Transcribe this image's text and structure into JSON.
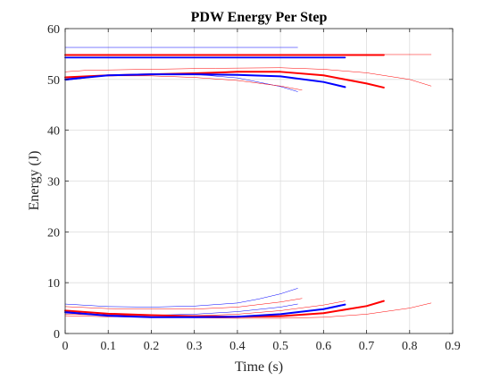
{
  "chart_data": {
    "type": "line",
    "title": "PDW Energy Per Step",
    "xlabel": "Time (s)",
    "ylabel": "Energy (J)",
    "xlim": [
      0,
      0.9
    ],
    "ylim": [
      0,
      60
    ],
    "xticks": [
      "0",
      "0.1",
      "0.2",
      "0.3",
      "0.4",
      "0.5",
      "0.6",
      "0.7",
      "0.8",
      "0.9"
    ],
    "yticks": [
      "0",
      "10",
      "20",
      "30",
      "40",
      "50",
      "60"
    ],
    "grid": true,
    "legend": "none",
    "colors": {
      "red": "#ff0000",
      "blue": "#0000ff",
      "grid": "#dddddd",
      "axis": "#262626"
    },
    "series": [
      {
        "color": "#0000ff",
        "width": 0.5,
        "x": [
          0,
          0.54
        ],
        "y": [
          56.3,
          56.3
        ]
      },
      {
        "color": "#ff0000",
        "width": 2,
        "x": [
          0,
          0.74
        ],
        "y": [
          54.8,
          54.8
        ]
      },
      {
        "color": "#0000ff",
        "width": 1.8,
        "x": [
          0,
          0.65
        ],
        "y": [
          54.3,
          54.3
        ]
      },
      {
        "color": "#ff0000",
        "width": 0.5,
        "x": [
          0,
          0.85
        ],
        "y": [
          54.9,
          54.9
        ]
      },
      {
        "color": "#ff0000",
        "width": 0.5,
        "x": [
          0,
          0.05,
          0.2,
          0.35,
          0.5,
          0.6,
          0.7,
          0.8,
          0.85
        ],
        "y": [
          51.5,
          51.8,
          52.0,
          52.2,
          52.3,
          52.0,
          51.3,
          50.0,
          48.7
        ]
      },
      {
        "color": "#ff0000",
        "width": 2,
        "x": [
          0,
          0.1,
          0.2,
          0.3,
          0.4,
          0.5,
          0.6,
          0.7,
          0.74
        ],
        "y": [
          50.4,
          50.8,
          51.0,
          51.2,
          51.5,
          51.5,
          50.8,
          49.2,
          48.4
        ]
      },
      {
        "color": "#0000ff",
        "width": 2,
        "x": [
          0,
          0.1,
          0.2,
          0.3,
          0.4,
          0.5,
          0.6,
          0.65
        ],
        "y": [
          50.0,
          50.8,
          51.0,
          51.0,
          50.9,
          50.6,
          49.5,
          48.5
        ]
      },
      {
        "color": "#0000ff",
        "width": 0.5,
        "x": [
          0,
          0.1,
          0.2,
          0.3,
          0.4,
          0.5,
          0.54
        ],
        "y": [
          49.8,
          50.8,
          51.1,
          51.0,
          50.3,
          48.6,
          47.6
        ]
      },
      {
        "color": "#ff0000",
        "width": 0.5,
        "x": [
          0,
          0.1,
          0.2,
          0.3,
          0.4,
          0.5,
          0.55
        ],
        "y": [
          50.5,
          50.7,
          50.7,
          50.4,
          49.8,
          48.7,
          47.9
        ]
      },
      {
        "color": "#0000ff",
        "width": 0.5,
        "x": [
          0,
          0.1,
          0.2,
          0.3,
          0.4,
          0.45,
          0.5,
          0.54
        ],
        "y": [
          5.8,
          5.3,
          5.2,
          5.4,
          6.0,
          6.8,
          7.8,
          8.9
        ]
      },
      {
        "color": "#ff0000",
        "width": 0.5,
        "x": [
          0,
          0.1,
          0.2,
          0.3,
          0.4,
          0.5,
          0.55
        ],
        "y": [
          5.3,
          4.9,
          4.8,
          4.8,
          5.2,
          6.2,
          6.9
        ]
      },
      {
        "color": "#ff0000",
        "width": 0.5,
        "x": [
          0,
          0.1,
          0.2,
          0.3,
          0.4,
          0.5,
          0.6,
          0.7,
          0.8,
          0.85
        ],
        "y": [
          3.5,
          3.3,
          3.2,
          3.1,
          3.0,
          3.0,
          3.2,
          3.8,
          5.0,
          6.0
        ]
      },
      {
        "color": "#ff0000",
        "width": 2,
        "x": [
          0,
          0.1,
          0.2,
          0.3,
          0.4,
          0.5,
          0.6,
          0.7,
          0.74
        ],
        "y": [
          4.5,
          3.9,
          3.6,
          3.4,
          3.3,
          3.4,
          4.0,
          5.4,
          6.4
        ]
      },
      {
        "color": "#0000ff",
        "width": 2,
        "x": [
          0,
          0.1,
          0.2,
          0.3,
          0.4,
          0.5,
          0.6,
          0.65
        ],
        "y": [
          4.2,
          3.5,
          3.2,
          3.2,
          3.3,
          3.8,
          4.8,
          5.7
        ]
      },
      {
        "color": "#ff0000",
        "width": 0.5,
        "x": [
          0,
          0.1,
          0.2,
          0.3,
          0.4,
          0.5,
          0.6,
          0.65
        ],
        "y": [
          3.8,
          3.6,
          3.5,
          3.5,
          3.8,
          4.5,
          5.6,
          6.4
        ]
      },
      {
        "color": "#0000ff",
        "width": 0.5,
        "x": [
          0,
          0.1,
          0.2,
          0.3,
          0.4,
          0.5,
          0.54
        ],
        "y": [
          4.0,
          3.7,
          3.6,
          3.8,
          4.3,
          5.2,
          5.8
        ]
      }
    ]
  }
}
